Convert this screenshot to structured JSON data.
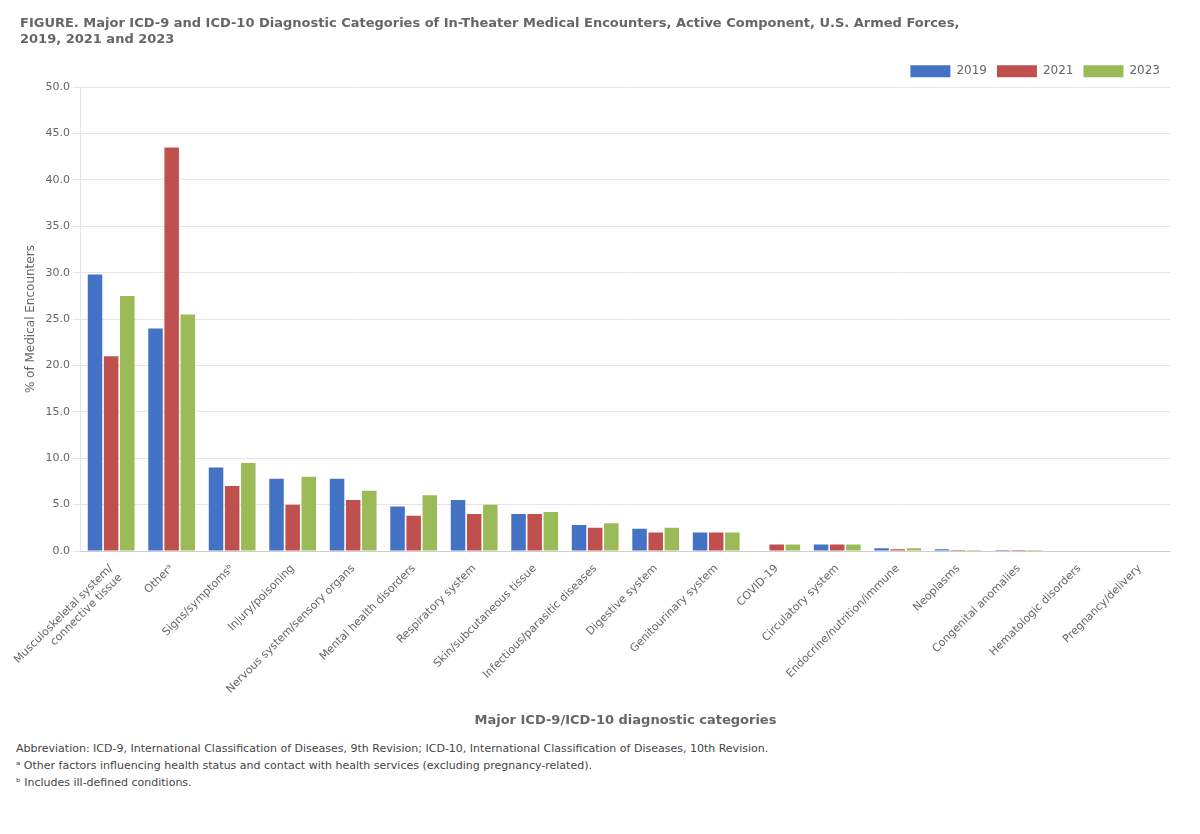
{
  "chart_data": {
    "type": "bar",
    "title": "FIGURE. Major ICD-9 and ICD-10 Diagnostic Categories of In-Theater Medical Encounters, Active Component, U.S. Armed Forces,\n2019, 2021 and 2023",
    "x_label": "Major ICD-9/ICD-10 diagnostic categories",
    "y_label": "% of Medical Encounters",
    "categories": [
      "Musculoskeletal system/\nconnective tissue",
      "Otherᵃ",
      "Signs/symptomsᵇ",
      "Injury/poisoning",
      "Nervous system/sensory organs",
      "Mental health disorders",
      "Respiratory system",
      "Skin/subcutaneous tissue",
      "Infectious/parasitic diseases",
      "Digestive system",
      "Genitourinary system",
      "COVID-19",
      "Circulatory system",
      "Endocrine/nutrition/immune",
      "Neoplasms",
      "Congenital anomalies",
      "Hematologic disorders",
      "Pregnancy/delivery"
    ],
    "series": [
      {
        "name": "2019",
        "color": "#4472C4",
        "values": [
          29.8,
          24.0,
          9.0,
          7.8,
          7.8,
          4.8,
          5.5,
          4.0,
          2.8,
          2.4,
          2.0,
          0.0,
          0.7,
          0.3,
          0.2,
          0.1,
          0.05,
          0.05
        ]
      },
      {
        "name": "2021",
        "color": "#C0504D",
        "values": [
          21.0,
          43.5,
          7.0,
          5.0,
          5.5,
          3.8,
          4.0,
          4.0,
          2.5,
          2.0,
          2.0,
          0.7,
          0.7,
          0.2,
          0.1,
          0.1,
          0.05,
          0.05
        ]
      },
      {
        "name": "2023",
        "color": "#9BBB59",
        "values": [
          27.5,
          25.5,
          9.5,
          8.0,
          6.5,
          6.0,
          5.0,
          4.2,
          3.0,
          2.5,
          2.0,
          0.7,
          0.7,
          0.3,
          0.1,
          0.1,
          0.05,
          0.05
        ]
      }
    ],
    "ylim": [
      0,
      50.0
    ],
    "yticks": [
      {
        "value": 0,
        "label": "0.0"
      },
      {
        "value": 5,
        "label": "5.0"
      },
      {
        "value": 10,
        "label": "10.0"
      },
      {
        "value": 15,
        "label": "15.0"
      },
      {
        "value": 20,
        "label": "20.0"
      },
      {
        "value": 25,
        "label": "25.0"
      },
      {
        "value": 30,
        "label": "30.0"
      },
      {
        "value": 35,
        "label": "35.0"
      },
      {
        "value": 40,
        "label": "40.0"
      },
      {
        "value": 45,
        "label": "45.0"
      },
      {
        "value": 50,
        "label": "50.0"
      }
    ],
    "grid": true,
    "legend": "upper right",
    "annotations": [
      "Abbreviation: ICD-9, International Classification of Diseases, 9th Revision; ICD-10, International Classification of Diseases, 10th Revision.",
      "ᵃ Other factors influencing health status and contact with health services (excluding pregnancy-related).",
      "ᵇ Includes ill-defined conditions."
    ]
  }
}
